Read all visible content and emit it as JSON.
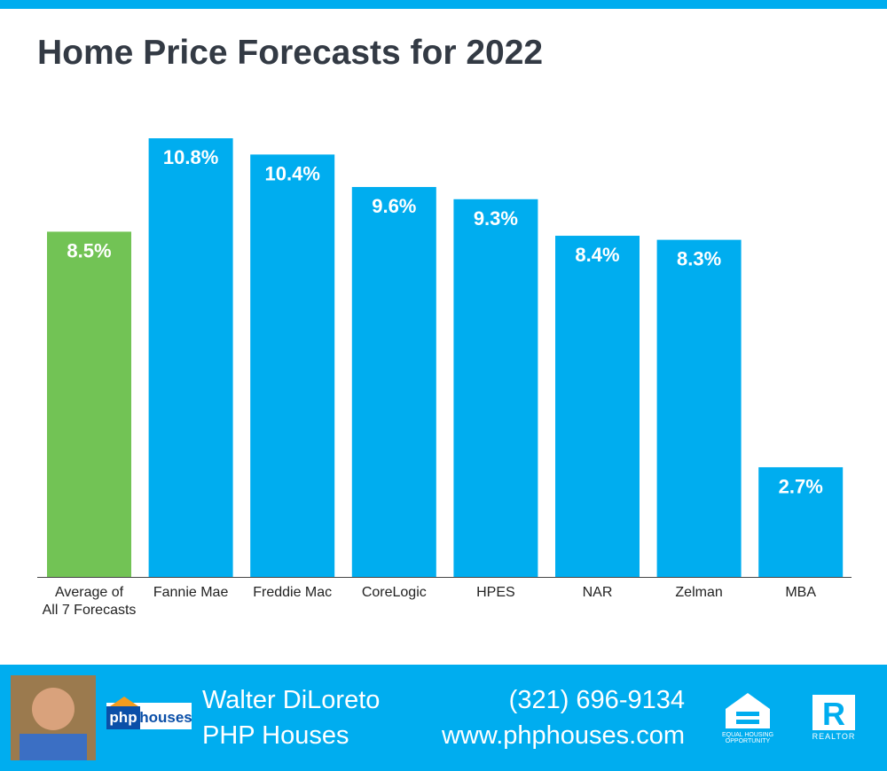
{
  "chart_data": {
    "type": "bar",
    "title": "Home Price Forecasts for 2022",
    "categories": [
      "Average of\nAll 7 Forecasts",
      "Fannie Mae",
      "Freddie Mac",
      "CoreLogic",
      "HPES",
      "NAR",
      "Zelman",
      "MBA"
    ],
    "values": [
      8.5,
      10.8,
      10.4,
      9.6,
      9.3,
      8.4,
      8.3,
      2.7
    ],
    "value_labels": [
      "8.5%",
      "10.8%",
      "10.4%",
      "9.6%",
      "9.3%",
      "8.4%",
      "8.3%",
      "2.7%"
    ],
    "colors": [
      "#72c355",
      "#00adef",
      "#00adef",
      "#00adef",
      "#00adef",
      "#00adef",
      "#00adef",
      "#00adef"
    ]
  },
  "footer": {
    "name": "Walter DiLoreto",
    "company": "PHP Houses",
    "phone": "(321) 696-9134",
    "website": "www.phphouses.com",
    "logo_php": "php",
    "logo_houses": "houses",
    "equal_housing": "EQUAL HOUSING\nOPPORTUNITY",
    "realtor": "REALTOR"
  }
}
